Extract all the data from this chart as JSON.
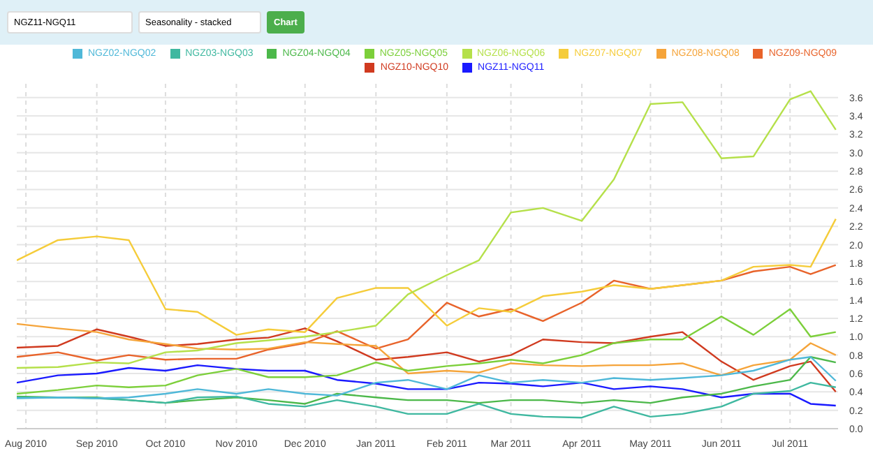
{
  "chart_data": {
    "type": "line",
    "annotations": [
      "NGZ11-NGQ11",
      "Seasonality - stacked",
      "Chart"
    ],
    "legend": "top",
    "marker": "none",
    "grid": true,
    "line_style": "solid",
    "xlim": [
      "2010-07-28",
      "2011-07-22"
    ],
    "xticks": [
      {
        "value": "2010-08-01",
        "label": "Aug 2010"
      },
      {
        "value": "2010-09-01",
        "label": "Sep 2010"
      },
      {
        "value": "2010-10-01",
        "label": "Oct 2010"
      },
      {
        "value": "2010-11-01",
        "label": "Nov 2010"
      },
      {
        "value": "2010-12-01",
        "label": "Dec 2010"
      },
      {
        "value": "2011-01-01",
        "label": "Jan 2011"
      },
      {
        "value": "2011-02-01",
        "label": "Feb 2011"
      },
      {
        "value": "2011-03-01",
        "label": "Mar 2011"
      },
      {
        "value": "2011-04-01",
        "label": "Apr 2011"
      },
      {
        "value": "2011-05-01",
        "label": "May 2011"
      },
      {
        "value": "2011-06-01",
        "label": "Jun 2011"
      },
      {
        "value": "2011-07-01",
        "label": "Jul 2011"
      }
    ],
    "ylim": [
      0,
      3.75
    ],
    "yticks": [
      {
        "value": 0,
        "label": "0.0"
      },
      {
        "value": 0.2,
        "label": "0.2"
      },
      {
        "value": 0.4,
        "label": "0.4"
      },
      {
        "value": 0.6,
        "label": "0.6"
      },
      {
        "value": 0.8,
        "label": "0.8"
      },
      {
        "value": 1,
        "label": "1.0"
      },
      {
        "value": 1.2,
        "label": "1.2"
      },
      {
        "value": 1.4,
        "label": "1.4"
      },
      {
        "value": 1.6,
        "label": "1.6"
      },
      {
        "value": 1.8,
        "label": "1.8"
      },
      {
        "value": 2,
        "label": "2.0"
      },
      {
        "value": 2.2,
        "label": "2.2"
      },
      {
        "value": 2.4,
        "label": "2.4"
      },
      {
        "value": 2.6,
        "label": "2.6"
      },
      {
        "value": 2.8,
        "label": "2.8"
      },
      {
        "value": 3,
        "label": "3.0"
      },
      {
        "value": 3.2,
        "label": "3.2"
      },
      {
        "value": 3.4,
        "label": "3.4"
      },
      {
        "value": 3.6,
        "label": "3.6"
      }
    ],
    "x": [
      "2010-07-28",
      "2010-08-15",
      "2010-09-01",
      "2010-09-15",
      "2010-10-01",
      "2010-10-15",
      "2010-11-01",
      "2010-11-15",
      "2010-12-01",
      "2010-12-15",
      "2011-01-01",
      "2011-01-15",
      "2011-02-01",
      "2011-02-15",
      "2011-03-01",
      "2011-03-15",
      "2011-04-01",
      "2011-04-15",
      "2011-05-01",
      "2011-05-15",
      "2011-06-01",
      "2011-06-15",
      "2011-07-01",
      "2011-07-10",
      "2011-07-21"
    ],
    "series": [
      {
        "name": "NGZ11-NGQ11",
        "color": "#1a1aff",
        "values": [
          0.5,
          0.58,
          0.6,
          0.66,
          0.63,
          0.69,
          0.65,
          0.63,
          0.63,
          0.53,
          0.49,
          0.43,
          0.43,
          0.5,
          0.49,
          0.46,
          0.5,
          0.43,
          0.46,
          0.43,
          0.34,
          0.38,
          0.38,
          0.27,
          0.25
        ]
      },
      {
        "name": "NGZ10-NGQ10",
        "color": "#d03a1f",
        "values": [
          0.88,
          0.9,
          1.08,
          1,
          0.9,
          0.92,
          0.97,
          0.99,
          1.09,
          0.95,
          0.75,
          0.78,
          0.83,
          0.73,
          0.8,
          0.97,
          0.94,
          0.93,
          1,
          1.05,
          0.73,
          0.53,
          0.68,
          0.73,
          0.4
        ]
      },
      {
        "name": "NGZ09-NGQ09",
        "color": "#e8632a",
        "values": [
          0.78,
          0.83,
          0.74,
          0.8,
          0.75,
          0.76,
          0.76,
          0.86,
          0.93,
          1.06,
          0.87,
          0.97,
          1.37,
          1.22,
          1.3,
          1.17,
          1.37,
          1.61,
          1.52,
          1.56,
          1.61,
          1.71,
          1.76,
          1.68,
          1.78
        ]
      },
      {
        "name": "NGZ08-NGQ08",
        "color": "#f5a43a",
        "values": [
          1.14,
          1.09,
          1.05,
          0.97,
          0.92,
          0.87,
          0.86,
          0.87,
          0.94,
          0.92,
          0.9,
          0.6,
          0.63,
          0.61,
          0.71,
          0.69,
          0.68,
          0.69,
          0.69,
          0.71,
          0.58,
          0.69,
          0.75,
          0.93,
          0.8
        ]
      },
      {
        "name": "NGZ07-NGQ07",
        "color": "#f5cc3a",
        "values": [
          1.83,
          2.05,
          2.09,
          2.05,
          1.3,
          1.27,
          1.02,
          1.08,
          1.05,
          1.42,
          1.53,
          1.53,
          1.12,
          1.31,
          1.27,
          1.44,
          1.49,
          1.56,
          1.52,
          1.56,
          1.61,
          1.76,
          1.78,
          1.76,
          2.28
        ]
      },
      {
        "name": "NGZ06-NGQ06",
        "color": "#b5e04a",
        "values": [
          0.66,
          0.67,
          0.72,
          0.71,
          0.83,
          0.85,
          0.93,
          0.96,
          1,
          1.05,
          1.12,
          1.46,
          1.67,
          1.83,
          2.35,
          2.4,
          2.26,
          2.71,
          3.53,
          3.55,
          2.94,
          2.96,
          3.58,
          3.67,
          3.25
        ]
      },
      {
        "name": "NGZ05-NGQ05",
        "color": "#7ccf3a",
        "values": [
          0.38,
          0.42,
          0.47,
          0.45,
          0.47,
          0.58,
          0.65,
          0.56,
          0.56,
          0.58,
          0.72,
          0.63,
          0.68,
          0.71,
          0.75,
          0.71,
          0.8,
          0.93,
          0.97,
          0.97,
          1.22,
          1.02,
          1.3,
          1,
          1.05
        ]
      },
      {
        "name": "NGZ04-NGQ04",
        "color": "#4cb84a",
        "values": [
          0.35,
          0.34,
          0.34,
          0.31,
          0.28,
          0.31,
          0.34,
          0.31,
          0.27,
          0.38,
          0.34,
          0.31,
          0.31,
          0.28,
          0.31,
          0.31,
          0.28,
          0.31,
          0.28,
          0.34,
          0.38,
          0.46,
          0.53,
          0.78,
          0.72
        ]
      },
      {
        "name": "NGZ03-NGQ03",
        "color": "#3fb8a0",
        "values": [
          0.34,
          0.34,
          0.33,
          0.31,
          0.28,
          0.34,
          0.35,
          0.27,
          0.24,
          0.31,
          0.24,
          0.16,
          0.16,
          0.27,
          0.16,
          0.13,
          0.12,
          0.24,
          0.13,
          0.16,
          0.24,
          0.38,
          0.41,
          0.5,
          0.45
        ]
      },
      {
        "name": "NGZ02-NGQ02",
        "color": "#4fb8d8",
        "values": [
          0.33,
          0.34,
          0.33,
          0.34,
          0.38,
          0.43,
          0.38,
          0.43,
          0.38,
          0.36,
          0.5,
          0.53,
          0.43,
          0.58,
          0.5,
          0.53,
          0.5,
          0.55,
          0.53,
          0.55,
          0.58,
          0.63,
          0.75,
          0.78,
          0.52
        ]
      }
    ]
  }
}
